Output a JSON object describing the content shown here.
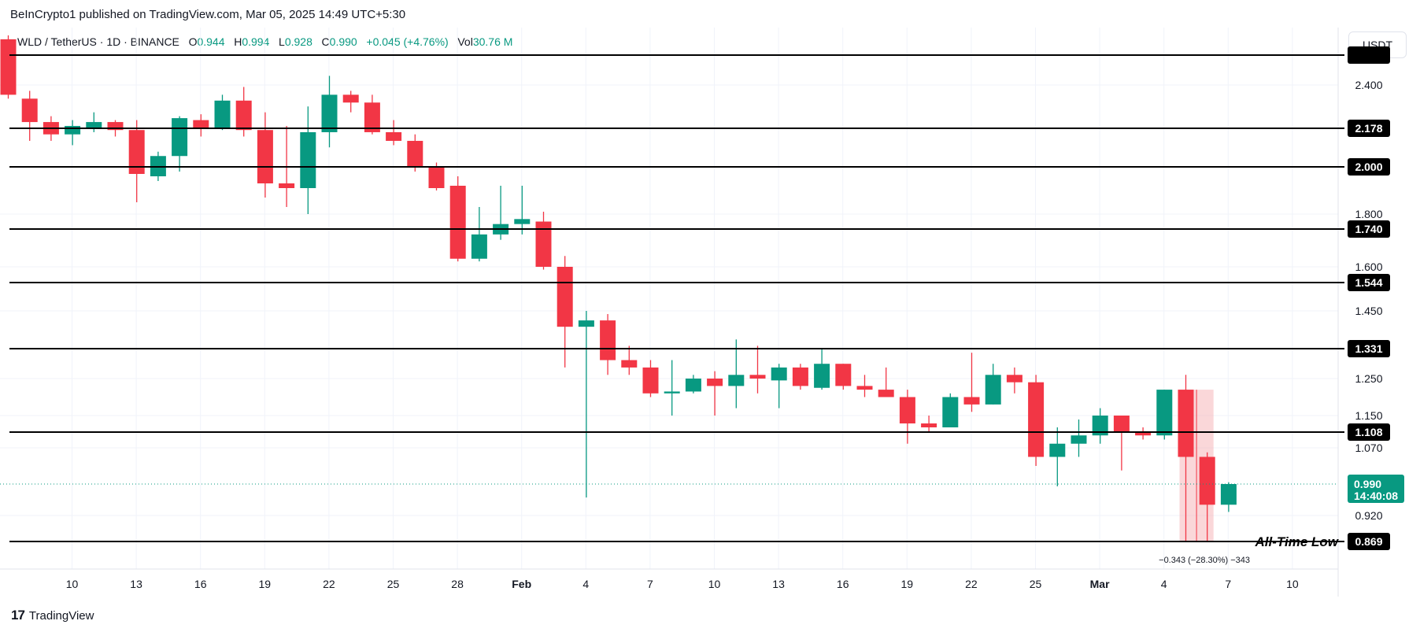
{
  "header": {
    "publisher": "BeInCrypto1 published on TradingView.com, Mar 05, 2025 14:49 UTC+5:30",
    "symbol": "WLD / TetherUS · 1D · BINANCE",
    "o_label": "O",
    "o_value": "0.944",
    "h_label": "H",
    "h_value": "0.994",
    "l_label": "L",
    "l_value": "0.928",
    "c_label": "C",
    "c_value": "0.990",
    "change": "+0.045 (+4.76%)",
    "vol_label": "Vol",
    "vol_value": "30.76 M",
    "currency_button": "USDT"
  },
  "footer": {
    "logo_text": "TradingView",
    "logo_mark": "17"
  },
  "colors": {
    "up": "#089981",
    "down": "#f23645",
    "level": "#000000",
    "grid": "#f0f3fa",
    "measure": "#f6b7b9"
  },
  "chart_data": {
    "type": "candlestick",
    "title": "WLD / TetherUS · 1D · BINANCE",
    "xlabel": "",
    "ylabel": "USDT",
    "x_ticks": [
      "10",
      "13",
      "16",
      "19",
      "22",
      "25",
      "28",
      "Feb",
      "4",
      "7",
      "10",
      "13",
      "16",
      "19",
      "22",
      "25",
      "Mar",
      "4",
      "7",
      "10"
    ],
    "y_ticks": [
      "2.400",
      "1.800",
      "1.600",
      "1.450",
      "1.250",
      "1.150",
      "1.070",
      "0.920"
    ],
    "horizontal_levels": [
      "2.178",
      "2.000",
      "1.740",
      "1.544",
      "1.331",
      "1.108",
      "0.869"
    ],
    "level_annotation": "All-Time Low",
    "current_price": "0.990",
    "countdown": "14:40:08",
    "measure_text": "−0.343 (−28.30%) −343",
    "candles": [
      {
        "x": "Jan 06",
        "o": 2.75,
        "h": 2.78,
        "l": 2.33,
        "c": 2.35
      },
      {
        "x": "Jan 07",
        "o": 2.33,
        "h": 2.37,
        "l": 2.12,
        "c": 2.21
      },
      {
        "x": "Jan 08",
        "o": 2.21,
        "h": 2.24,
        "l": 2.12,
        "c": 2.15
      },
      {
        "x": "Jan 09",
        "o": 2.15,
        "h": 2.22,
        "l": 2.1,
        "c": 2.19
      },
      {
        "x": "Jan 10",
        "o": 2.18,
        "h": 2.26,
        "l": 2.16,
        "c": 2.21
      },
      {
        "x": "Jan 11",
        "o": 2.21,
        "h": 2.22,
        "l": 2.14,
        "c": 2.17
      },
      {
        "x": "Jan 12",
        "o": 2.17,
        "h": 2.22,
        "l": 1.85,
        "c": 1.97
      },
      {
        "x": "Jan 13",
        "o": 1.96,
        "h": 2.07,
        "l": 1.94,
        "c": 2.05
      },
      {
        "x": "Jan 14",
        "o": 2.05,
        "h": 2.24,
        "l": 1.98,
        "c": 2.23
      },
      {
        "x": "Jan 15",
        "o": 2.22,
        "h": 2.25,
        "l": 2.14,
        "c": 2.18
      },
      {
        "x": "Jan 16",
        "o": 2.18,
        "h": 2.35,
        "l": 2.17,
        "c": 2.32
      },
      {
        "x": "Jan 17",
        "o": 2.32,
        "h": 2.39,
        "l": 2.14,
        "c": 2.17
      },
      {
        "x": "Jan 18",
        "o": 2.17,
        "h": 2.26,
        "l": 1.87,
        "c": 1.93
      },
      {
        "x": "Jan 19",
        "o": 1.93,
        "h": 2.19,
        "l": 1.83,
        "c": 1.91
      },
      {
        "x": "Jan 20",
        "o": 1.91,
        "h": 2.29,
        "l": 1.8,
        "c": 2.16
      },
      {
        "x": "Jan 21",
        "o": 2.16,
        "h": 2.47,
        "l": 2.09,
        "c": 2.35
      },
      {
        "x": "Jan 22",
        "o": 2.35,
        "h": 2.37,
        "l": 2.26,
        "c": 2.31
      },
      {
        "x": "Jan 23",
        "o": 2.31,
        "h": 2.35,
        "l": 2.15,
        "c": 2.16
      },
      {
        "x": "Jan 24",
        "o": 2.16,
        "h": 2.22,
        "l": 2.1,
        "c": 2.12
      },
      {
        "x": "Jan 25",
        "o": 2.12,
        "h": 2.15,
        "l": 1.98,
        "c": 2.0
      },
      {
        "x": "Jan 26",
        "o": 2.0,
        "h": 2.02,
        "l": 1.9,
        "c": 1.91
      },
      {
        "x": "Jan 27",
        "o": 1.92,
        "h": 1.96,
        "l": 1.62,
        "c": 1.63
      },
      {
        "x": "Jan 28",
        "o": 1.63,
        "h": 1.83,
        "l": 1.62,
        "c": 1.72
      },
      {
        "x": "Jan 29",
        "o": 1.72,
        "h": 1.92,
        "l": 1.7,
        "c": 1.76
      },
      {
        "x": "Jan 30",
        "o": 1.76,
        "h": 1.92,
        "l": 1.72,
        "c": 1.78
      },
      {
        "x": "Jan 31",
        "o": 1.77,
        "h": 1.81,
        "l": 1.59,
        "c": 1.6
      },
      {
        "x": "Feb 01",
        "o": 1.6,
        "h": 1.64,
        "l": 1.28,
        "c": 1.4
      },
      {
        "x": "Feb 02",
        "o": 1.4,
        "h": 1.45,
        "l": 0.96,
        "c": 1.42
      },
      {
        "x": "Feb 03",
        "o": 1.42,
        "h": 1.44,
        "l": 1.26,
        "c": 1.3
      },
      {
        "x": "Feb 04",
        "o": 1.3,
        "h": 1.34,
        "l": 1.26,
        "c": 1.28
      },
      {
        "x": "Feb 05",
        "o": 1.28,
        "h": 1.3,
        "l": 1.2,
        "c": 1.21
      },
      {
        "x": "Feb 06",
        "o": 1.21,
        "h": 1.3,
        "l": 1.15,
        "c": 1.215
      },
      {
        "x": "Feb 07",
        "o": 1.215,
        "h": 1.26,
        "l": 1.21,
        "c": 1.25
      },
      {
        "x": "Feb 08",
        "o": 1.25,
        "h": 1.27,
        "l": 1.15,
        "c": 1.23
      },
      {
        "x": "Feb 09",
        "o": 1.23,
        "h": 1.36,
        "l": 1.17,
        "c": 1.26
      },
      {
        "x": "Feb 10",
        "o": 1.26,
        "h": 1.34,
        "l": 1.21,
        "c": 1.25
      },
      {
        "x": "Feb 11",
        "o": 1.245,
        "h": 1.29,
        "l": 1.17,
        "c": 1.28
      },
      {
        "x": "Feb 12",
        "o": 1.28,
        "h": 1.29,
        "l": 1.22,
        "c": 1.23
      },
      {
        "x": "Feb 13",
        "o": 1.225,
        "h": 1.33,
        "l": 1.22,
        "c": 1.29
      },
      {
        "x": "Feb 14",
        "o": 1.29,
        "h": 1.29,
        "l": 1.22,
        "c": 1.23
      },
      {
        "x": "Feb 15",
        "o": 1.23,
        "h": 1.26,
        "l": 1.2,
        "c": 1.22
      },
      {
        "x": "Feb 16",
        "o": 1.22,
        "h": 1.28,
        "l": 1.2,
        "c": 1.2
      },
      {
        "x": "Feb 17",
        "o": 1.2,
        "h": 1.22,
        "l": 1.08,
        "c": 1.13
      },
      {
        "x": "Feb 18",
        "o": 1.13,
        "h": 1.15,
        "l": 1.11,
        "c": 1.12
      },
      {
        "x": "Feb 19",
        "o": 1.12,
        "h": 1.21,
        "l": 1.12,
        "c": 1.2
      },
      {
        "x": "Feb 20",
        "o": 1.2,
        "h": 1.32,
        "l": 1.16,
        "c": 1.18
      },
      {
        "x": "Feb 21",
        "o": 1.18,
        "h": 1.29,
        "l": 1.18,
        "c": 1.26
      },
      {
        "x": "Feb 22",
        "o": 1.26,
        "h": 1.28,
        "l": 1.21,
        "c": 1.24
      },
      {
        "x": "Feb 23",
        "o": 1.24,
        "h": 1.26,
        "l": 1.03,
        "c": 1.05
      },
      {
        "x": "Feb 24",
        "o": 1.05,
        "h": 1.12,
        "l": 0.985,
        "c": 1.08
      },
      {
        "x": "Feb 25",
        "o": 1.08,
        "h": 1.14,
        "l": 1.05,
        "c": 1.1
      },
      {
        "x": "Feb 26",
        "o": 1.1,
        "h": 1.17,
        "l": 1.08,
        "c": 1.15
      },
      {
        "x": "Feb 27",
        "o": 1.15,
        "h": 1.15,
        "l": 1.02,
        "c": 1.11
      },
      {
        "x": "Feb 28",
        "o": 1.11,
        "h": 1.12,
        "l": 1.09,
        "c": 1.1
      },
      {
        "x": "Mar 01",
        "o": 1.1,
        "h": 1.22,
        "l": 1.09,
        "c": 1.22
      },
      {
        "x": "Mar 02",
        "o": 1.22,
        "h": 1.26,
        "l": 0.87,
        "c": 1.05
      },
      {
        "x": "Mar 03",
        "o": 1.05,
        "h": 1.06,
        "l": 0.87,
        "c": 0.944
      },
      {
        "x": "Mar 04",
        "o": 0.944,
        "h": 0.994,
        "l": 0.928,
        "c": 0.99
      }
    ]
  }
}
